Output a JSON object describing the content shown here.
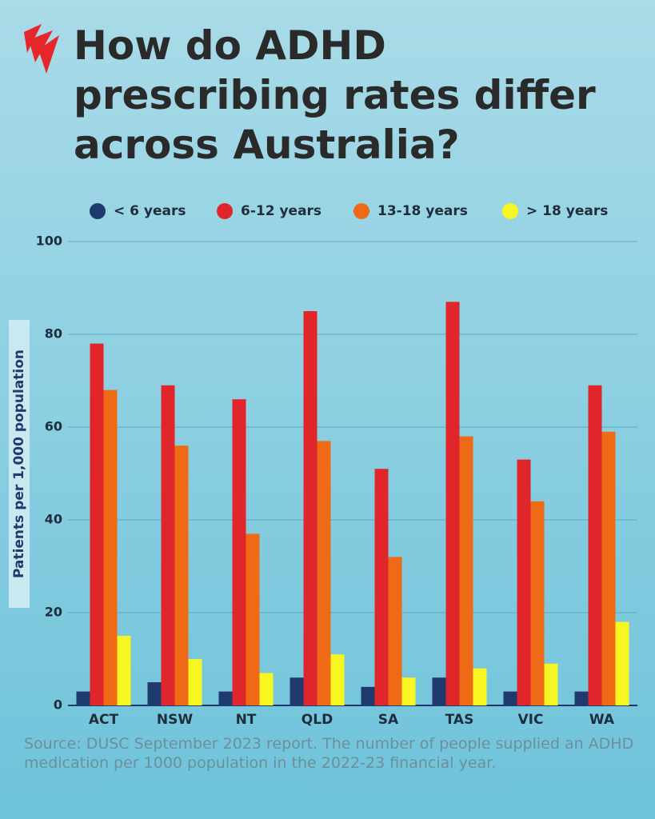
{
  "chart_data": {
    "type": "bar",
    "title": "How do ADHD prescribing rates differ across Australia?",
    "y_label": "Patients per 1,000 population",
    "categories": [
      "ACT",
      "NSW",
      "NT",
      "QLD",
      "SA",
      "TAS",
      "VIC",
      "WA"
    ],
    "series": [
      {
        "name": "< 6 years",
        "color": "#1f3a6e",
        "values": [
          3,
          5,
          3,
          6,
          4,
          6,
          3,
          3
        ]
      },
      {
        "name": "6-12 years",
        "color": "#e1262b",
        "values": [
          78,
          69,
          66,
          85,
          51,
          87,
          53,
          69
        ]
      },
      {
        "name": "13-18 years",
        "color": "#ef6a17",
        "values": [
          68,
          56,
          37,
          57,
          32,
          58,
          44,
          59
        ]
      },
      {
        "name": "> 18 years",
        "color": "#f7f522",
        "values": [
          15,
          10,
          7,
          11,
          6,
          8,
          9,
          18
        ]
      }
    ],
    "ylim": [
      0,
      100
    ],
    "yticks": [
      0,
      20,
      40,
      60,
      80,
      100
    ],
    "grid": true,
    "source": "Source: DUSC September 2023 report. The number of people supplied an ADHD medication per 1000 population in the 2022-23 financial year."
  }
}
